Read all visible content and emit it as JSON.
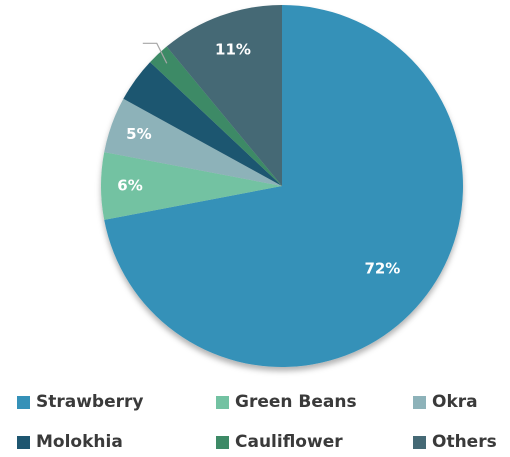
{
  "chart_data": {
    "type": "pie",
    "title": "",
    "slices": [
      {
        "name": "Strawberry",
        "value": 72,
        "label": "72%",
        "color": "#3591b8"
      },
      {
        "name": "Green Beans",
        "value": 6,
        "label": "6%",
        "color": "#73c2a2"
      },
      {
        "name": "Okra",
        "value": 5,
        "label": "5%",
        "color": "#8db2b9"
      },
      {
        "name": "Molokhia",
        "value": 4,
        "label": "",
        "color": "#1e5670"
      },
      {
        "name": "Cauliflower",
        "value": 2,
        "label": "",
        "color": "#3d8a66"
      },
      {
        "name": "Others",
        "value": 11,
        "label": "11%",
        "color": "#456975"
      }
    ],
    "start_angle_deg": 0,
    "direction": "clockwise",
    "legend_position": "bottom",
    "legend_columns": 3
  }
}
